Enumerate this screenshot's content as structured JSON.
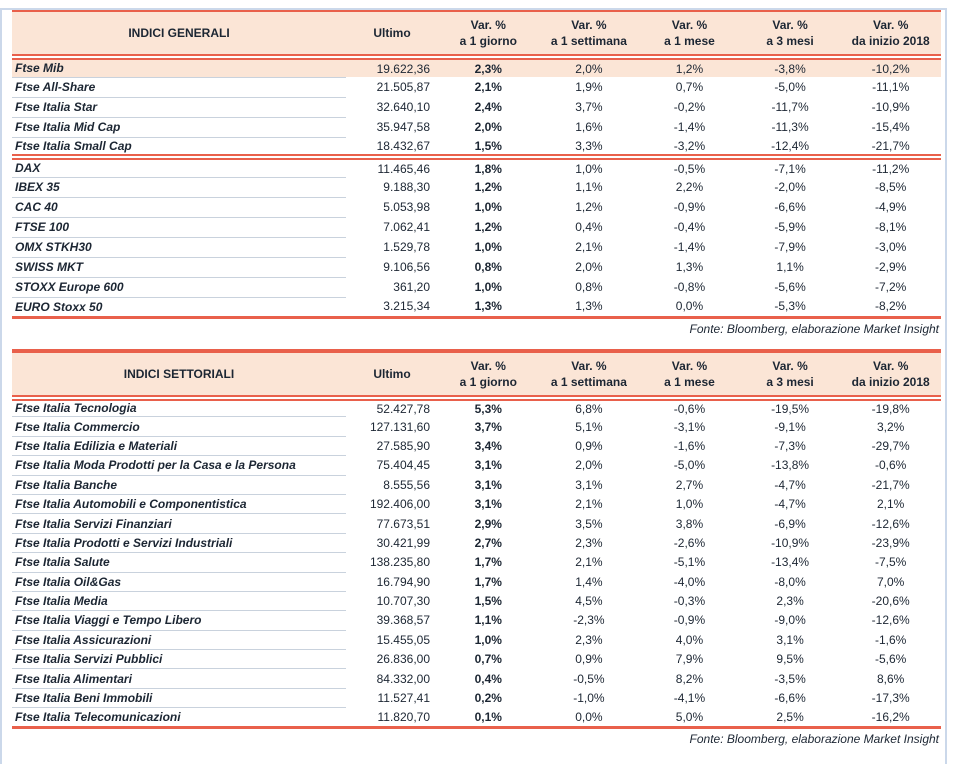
{
  "colors": {
    "accent": "#E9604B",
    "header_bg": "#FBE5D6",
    "highlight_bg": "#FBE5D6",
    "text": "#1C2633",
    "row_separator": "#C9D2DD",
    "frame": "#CBD8EA"
  },
  "tables": [
    {
      "title": "INDICI GENERALI",
      "ultimo_label": "Ultimo",
      "var_columns": [
        {
          "line1": "Var. %",
          "line2": "a 1 giorno"
        },
        {
          "line1": "Var. %",
          "line2": "a 1 settimana"
        },
        {
          "line1": "Var. %",
          "line2": "a 1 mese"
        },
        {
          "line1": "Var. %",
          "line2": "a 3 mesi"
        },
        {
          "line1": "Var. %",
          "line2": "da inizio 2018"
        }
      ],
      "groups": [
        {
          "rows": [
            {
              "name": "Ftse Mib",
              "ultimo": "19.622,36",
              "var_1_day": "2,3%",
              "var_1_week": "2,0%",
              "var_1_month": "1,2%",
              "var_3_months": "-3,8%",
              "var_ytd_2018": "-10,2%",
              "highlight": true
            },
            {
              "name": "Ftse All-Share",
              "ultimo": "21.505,87",
              "var_1_day": "2,1%",
              "var_1_week": "1,9%",
              "var_1_month": "0,7%",
              "var_3_months": "-5,0%",
              "var_ytd_2018": "-11,1%"
            },
            {
              "name": "Ftse Italia Star",
              "ultimo": "32.640,10",
              "var_1_day": "2,4%",
              "var_1_week": "3,7%",
              "var_1_month": "-0,2%",
              "var_3_months": "-11,7%",
              "var_ytd_2018": "-10,9%"
            },
            {
              "name": "Ftse Italia Mid Cap",
              "ultimo": "35.947,58",
              "var_1_day": "2,0%",
              "var_1_week": "1,6%",
              "var_1_month": "-1,4%",
              "var_3_months": "-11,3%",
              "var_ytd_2018": "-15,4%"
            },
            {
              "name": "Ftse Italia Small Cap",
              "ultimo": "18.432,67",
              "var_1_day": "1,5%",
              "var_1_week": "3,3%",
              "var_1_month": "-3,2%",
              "var_3_months": "-12,4%",
              "var_ytd_2018": "-21,7%"
            }
          ]
        },
        {
          "rows": [
            {
              "name": "DAX",
              "ultimo": "11.465,46",
              "var_1_day": "1,8%",
              "var_1_week": "1,0%",
              "var_1_month": "-0,5%",
              "var_3_months": "-7,1%",
              "var_ytd_2018": "-11,2%"
            },
            {
              "name": "IBEX 35",
              "ultimo": "9.188,30",
              "var_1_day": "1,2%",
              "var_1_week": "1,1%",
              "var_1_month": "2,2%",
              "var_3_months": "-2,0%",
              "var_ytd_2018": "-8,5%"
            },
            {
              "name": "CAC 40",
              "ultimo": "5.053,98",
              "var_1_day": "1,0%",
              "var_1_week": "1,2%",
              "var_1_month": "-0,9%",
              "var_3_months": "-6,6%",
              "var_ytd_2018": "-4,9%"
            },
            {
              "name": "FTSE 100",
              "ultimo": "7.062,41",
              "var_1_day": "1,2%",
              "var_1_week": "0,4%",
              "var_1_month": "-0,4%",
              "var_3_months": "-5,9%",
              "var_ytd_2018": "-8,1%"
            },
            {
              "name": "OMX STKH30",
              "ultimo": "1.529,78",
              "var_1_day": "1,0%",
              "var_1_week": "2,1%",
              "var_1_month": "-1,4%",
              "var_3_months": "-7,9%",
              "var_ytd_2018": "-3,0%"
            },
            {
              "name": "SWISS MKT",
              "ultimo": "9.106,56",
              "var_1_day": "0,8%",
              "var_1_week": "2,0%",
              "var_1_month": "1,3%",
              "var_3_months": "1,1%",
              "var_ytd_2018": "-2,9%"
            },
            {
              "name": "STOXX Europe 600",
              "ultimo": "361,20",
              "var_1_day": "1,0%",
              "var_1_week": "0,8%",
              "var_1_month": "-0,8%",
              "var_3_months": "-5,6%",
              "var_ytd_2018": "-7,2%"
            },
            {
              "name": "EURO Stoxx 50",
              "ultimo": "3.215,34",
              "var_1_day": "1,3%",
              "var_1_week": "1,3%",
              "var_1_month": "0,0%",
              "var_3_months": "-5,3%",
              "var_ytd_2018": "-8,2%"
            }
          ]
        }
      ],
      "source_note": "Fonte: Bloomberg, elaborazione Market Insight"
    },
    {
      "title": "INDICI SETTORIALI",
      "ultimo_label": "Ultimo",
      "var_columns": [
        {
          "line1": "Var. %",
          "line2": "a 1 giorno"
        },
        {
          "line1": "Var. %",
          "line2": "a 1 settimana"
        },
        {
          "line1": "Var. %",
          "line2": "a 1 mese"
        },
        {
          "line1": "Var. %",
          "line2": "a 3 mesi"
        },
        {
          "line1": "Var. %",
          "line2": "da inizio 2018"
        }
      ],
      "groups": [
        {
          "rows": [
            {
              "name": "Ftse Italia Tecnologia",
              "ultimo": "52.427,78",
              "var_1_day": "5,3%",
              "var_1_week": "6,8%",
              "var_1_month": "-0,6%",
              "var_3_months": "-19,5%",
              "var_ytd_2018": "-19,8%"
            },
            {
              "name": "Ftse Italia Commercio",
              "ultimo": "127.131,60",
              "var_1_day": "3,7%",
              "var_1_week": "5,1%",
              "var_1_month": "-3,1%",
              "var_3_months": "-9,1%",
              "var_ytd_2018": "3,2%"
            },
            {
              "name": "Ftse Italia Edilizia e Materiali",
              "ultimo": "27.585,90",
              "var_1_day": "3,4%",
              "var_1_week": "0,9%",
              "var_1_month": "-1,6%",
              "var_3_months": "-7,3%",
              "var_ytd_2018": "-29,7%"
            },
            {
              "name": "Ftse Italia Moda Prodotti per la Casa e la Persona",
              "ultimo": "75.404,45",
              "var_1_day": "3,1%",
              "var_1_week": "2,0%",
              "var_1_month": "-5,0%",
              "var_3_months": "-13,8%",
              "var_ytd_2018": "-0,6%"
            },
            {
              "name": "Ftse Italia Banche",
              "ultimo": "8.555,56",
              "var_1_day": "3,1%",
              "var_1_week": "3,1%",
              "var_1_month": "2,7%",
              "var_3_months": "-4,7%",
              "var_ytd_2018": "-21,7%"
            },
            {
              "name": "Ftse Italia Automobili e Componentistica",
              "ultimo": "192.406,00",
              "var_1_day": "3,1%",
              "var_1_week": "2,1%",
              "var_1_month": "1,0%",
              "var_3_months": "-4,7%",
              "var_ytd_2018": "2,1%"
            },
            {
              "name": "Ftse Italia Servizi Finanziari",
              "ultimo": "77.673,51",
              "var_1_day": "2,9%",
              "var_1_week": "3,5%",
              "var_1_month": "3,8%",
              "var_3_months": "-6,9%",
              "var_ytd_2018": "-12,6%"
            },
            {
              "name": "Ftse Italia Prodotti e Servizi Industriali",
              "ultimo": "30.421,99",
              "var_1_day": "2,7%",
              "var_1_week": "2,3%",
              "var_1_month": "-2,6%",
              "var_3_months": "-10,9%",
              "var_ytd_2018": "-23,9%"
            },
            {
              "name": "Ftse Italia Salute",
              "ultimo": "138.235,80",
              "var_1_day": "1,7%",
              "var_1_week": "2,1%",
              "var_1_month": "-5,1%",
              "var_3_months": "-13,4%",
              "var_ytd_2018": "-7,5%"
            },
            {
              "name": "Ftse Italia Oil&Gas",
              "ultimo": "16.794,90",
              "var_1_day": "1,7%",
              "var_1_week": "1,4%",
              "var_1_month": "-4,0%",
              "var_3_months": "-8,0%",
              "var_ytd_2018": "7,0%"
            },
            {
              "name": "Ftse Italia Media",
              "ultimo": "10.707,30",
              "var_1_day": "1,5%",
              "var_1_week": "4,5%",
              "var_1_month": "-0,3%",
              "var_3_months": "2,3%",
              "var_ytd_2018": "-20,6%"
            },
            {
              "name": "Ftse Italia Viaggi e Tempo Libero",
              "ultimo": "39.368,57",
              "var_1_day": "1,1%",
              "var_1_week": "-2,3%",
              "var_1_month": "-0,9%",
              "var_3_months": "-9,0%",
              "var_ytd_2018": "-12,6%"
            },
            {
              "name": "Ftse Italia Assicurazioni",
              "ultimo": "15.455,05",
              "var_1_day": "1,0%",
              "var_1_week": "2,3%",
              "var_1_month": "4,0%",
              "var_3_months": "3,1%",
              "var_ytd_2018": "-1,6%"
            },
            {
              "name": "Ftse Italia Servizi Pubblici",
              "ultimo": "26.836,00",
              "var_1_day": "0,7%",
              "var_1_week": "0,9%",
              "var_1_month": "7,9%",
              "var_3_months": "9,5%",
              "var_ytd_2018": "-5,6%"
            },
            {
              "name": "Ftse Italia Alimentari",
              "ultimo": "84.332,00",
              "var_1_day": "0,4%",
              "var_1_week": "-0,5%",
              "var_1_month": "8,2%",
              "var_3_months": "-3,5%",
              "var_ytd_2018": "8,6%"
            },
            {
              "name": "Ftse Italia Beni Immobili",
              "ultimo": "11.527,41",
              "var_1_day": "0,2%",
              "var_1_week": "-1,0%",
              "var_1_month": "-4,1%",
              "var_3_months": "-6,6%",
              "var_ytd_2018": "-17,3%"
            },
            {
              "name": "Ftse Italia Telecomunicazioni",
              "ultimo": "11.820,70",
              "var_1_day": "0,1%",
              "var_1_week": "0,0%",
              "var_1_month": "5,0%",
              "var_3_months": "2,5%",
              "var_ytd_2018": "-16,2%"
            }
          ]
        }
      ],
      "source_note": "Fonte: Bloomberg, elaborazione Market Insight"
    }
  ]
}
